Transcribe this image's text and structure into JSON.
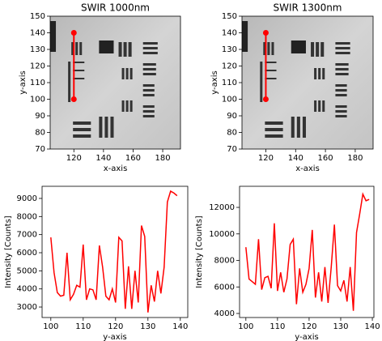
{
  "chart_data": [
    {
      "type": "image",
      "title": "SWIR 1000nm",
      "x_label": "x-axis",
      "y_label": "y-axis",
      "xlim": [
        104,
        192
      ],
      "ylim": [
        70,
        150
      ],
      "xticks": [
        120,
        140,
        160,
        180
      ],
      "yticks": [
        70,
        80,
        90,
        100,
        110,
        120,
        130,
        140,
        150
      ],
      "series": [
        {
          "color": "#ff0000",
          "x": [
            120,
            120
          ],
          "values": [
            100,
            140
          ]
        }
      ]
    },
    {
      "type": "image",
      "title": "SWIR 1300nm",
      "x_label": "x-axis",
      "y_label": "y-axis",
      "xlim": [
        104,
        192
      ],
      "ylim": [
        70,
        150
      ],
      "xticks": [
        120,
        140,
        160,
        180
      ],
      "yticks": [
        70,
        80,
        90,
        100,
        110,
        120,
        130,
        140,
        150
      ],
      "series": [
        {
          "color": "#ff0000",
          "x": [
            120,
            120
          ],
          "values": [
            100,
            140
          ]
        }
      ]
    },
    {
      "type": "line",
      "x_label": "y-axis",
      "y_label": "Intensity [Counts]",
      "xlim": [
        97.3,
        142.3
      ],
      "ylim": [
        2420,
        9670
      ],
      "xticks": [
        100,
        110,
        120,
        130,
        140
      ],
      "yticks": [
        3000,
        4000,
        5000,
        6000,
        7000,
        8000,
        9000
      ],
      "series": [
        {
          "color": "#ff0000",
          "x": [
            100,
            101,
            102,
            103,
            104,
            105,
            106,
            107,
            108,
            109,
            110,
            111,
            112,
            113,
            114,
            115,
            116,
            117,
            118,
            119,
            120,
            121,
            122,
            123,
            124,
            125,
            126,
            127,
            128,
            129,
            130,
            131,
            132,
            133,
            134,
            135,
            136,
            137,
            138,
            139
          ],
          "values": [
            6850,
            4900,
            3800,
            3600,
            3650,
            6000,
            3400,
            3700,
            4200,
            4100,
            6450,
            3400,
            4000,
            3950,
            3400,
            6400,
            5200,
            3600,
            3400,
            4000,
            3250,
            6850,
            6650,
            2900,
            5250,
            2900,
            5000,
            3250,
            7500,
            6900,
            2700,
            4200,
            3300,
            5000,
            3750,
            5200,
            8800,
            9400,
            9300,
            9150
          ]
        }
      ]
    },
    {
      "type": "line",
      "x_label": "y-axis",
      "y_label": "Intensity [Counts]",
      "xlim": [
        98,
        140.5
      ],
      "ylim": [
        3695,
        13590
      ],
      "xticks": [
        100,
        110,
        120,
        130,
        140
      ],
      "yticks": [
        4000,
        6000,
        8000,
        10000,
        12000
      ],
      "series": [
        {
          "color": "#ff0000",
          "x": [
            100,
            101,
            102,
            103,
            104,
            105,
            106,
            107,
            108,
            109,
            110,
            111,
            112,
            113,
            114,
            115,
            116,
            117,
            118,
            119,
            120,
            121,
            122,
            123,
            124,
            125,
            126,
            127,
            128,
            129,
            130,
            131,
            132,
            133,
            134,
            135,
            136,
            137,
            138,
            139
          ],
          "values": [
            9000,
            6600,
            6400,
            6200,
            9600,
            5800,
            6700,
            6800,
            5900,
            10800,
            5700,
            7100,
            5600,
            6600,
            9200,
            9600,
            4700,
            7400,
            5600,
            6200,
            7400,
            10300,
            5200,
            7100,
            4900,
            7500,
            4800,
            7500,
            10700,
            6100,
            5700,
            6500,
            4900,
            7500,
            4200,
            10100,
            11500,
            13000,
            12500,
            12600
          ]
        }
      ]
    }
  ]
}
